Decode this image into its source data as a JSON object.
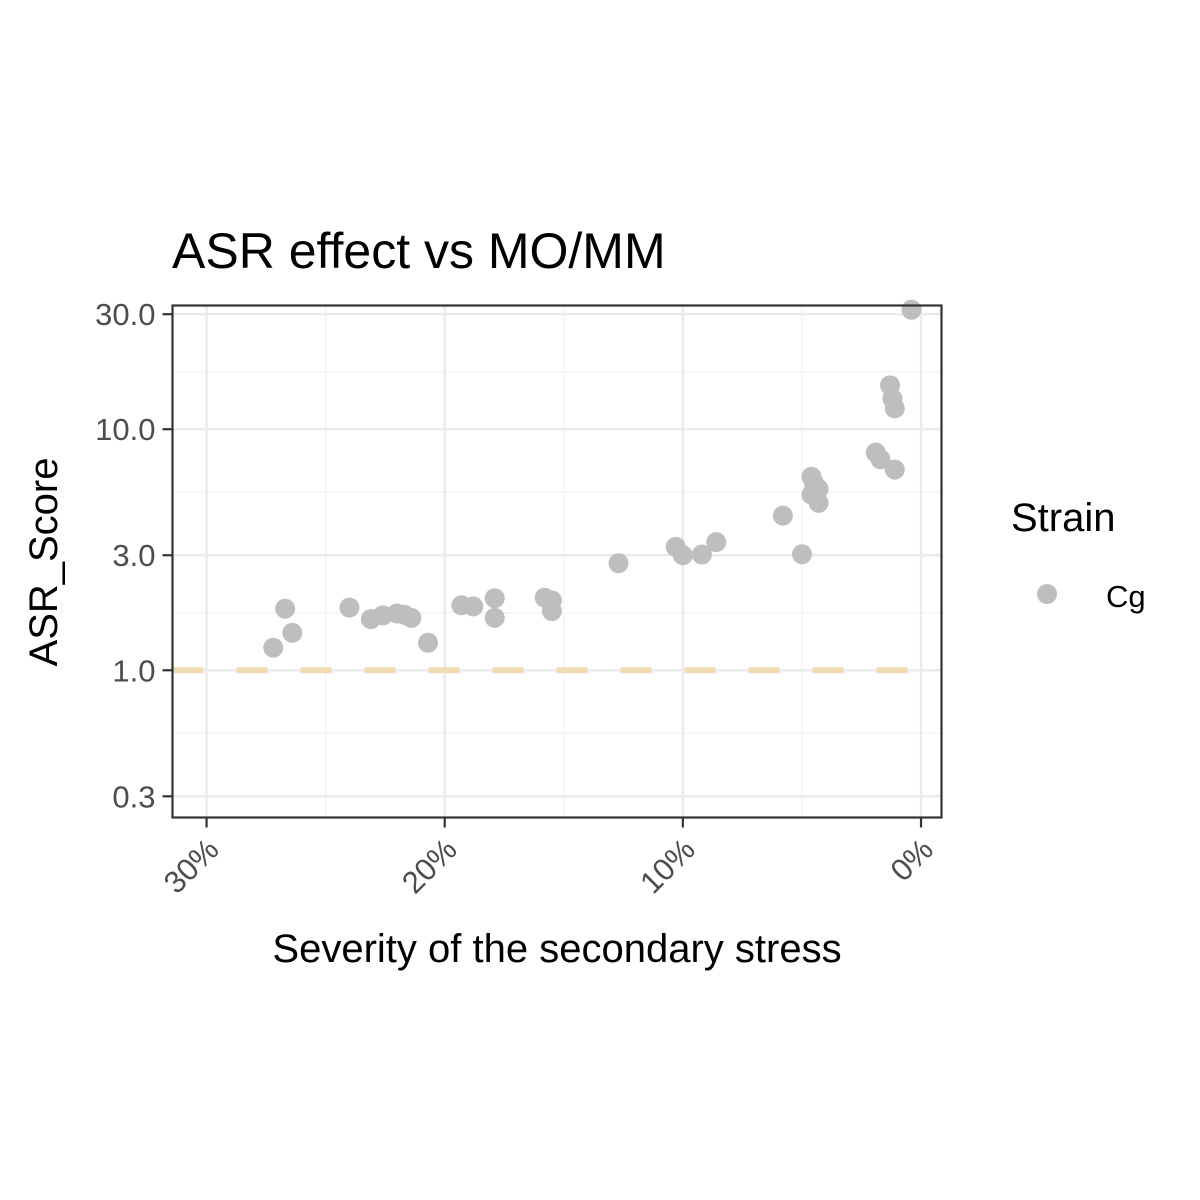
{
  "chart_data": {
    "type": "scatter",
    "title": "ASR effect vs MO/MM",
    "xlabel": "Severity of the secondary stress",
    "ylabel": "ASR_Score",
    "x_reversed": true,
    "x_ticks": [
      {
        "value": 0.3,
        "label": "30%"
      },
      {
        "value": 0.2,
        "label": "20%"
      },
      {
        "value": 0.1,
        "label": "10%"
      },
      {
        "value": 0.0,
        "label": "0%"
      }
    ],
    "y_scale": "log10",
    "y_ticks": [
      {
        "value": 0.3,
        "label": "0.3"
      },
      {
        "value": 1.0,
        "label": "1.0"
      },
      {
        "value": 3.0,
        "label": "3.0"
      },
      {
        "value": 10.0,
        "label": "10.0"
      },
      {
        "value": 30.0,
        "label": "30.0"
      }
    ],
    "xlim": [
      0.3143,
      -0.0086
    ],
    "ylim": [
      0.245,
      32.6
    ],
    "reference_line": {
      "y": 1.0,
      "style": "dashed",
      "color": "#f0dbb4"
    },
    "grid": true,
    "legend": {
      "title": "Strain",
      "position": "right",
      "entries": [
        {
          "label": "Cg",
          "color": "#bebebe"
        }
      ]
    },
    "series": [
      {
        "name": "Cg",
        "color": "#bebebe",
        "points": [
          {
            "x": 0.272,
            "y": 1.24
          },
          {
            "x": 0.267,
            "y": 1.8
          },
          {
            "x": 0.264,
            "y": 1.43
          },
          {
            "x": 0.24,
            "y": 1.82
          },
          {
            "x": 0.231,
            "y": 1.63
          },
          {
            "x": 0.226,
            "y": 1.69
          },
          {
            "x": 0.22,
            "y": 1.72
          },
          {
            "x": 0.217,
            "y": 1.7
          },
          {
            "x": 0.214,
            "y": 1.65
          },
          {
            "x": 0.207,
            "y": 1.3
          },
          {
            "x": 0.193,
            "y": 1.86
          },
          {
            "x": 0.188,
            "y": 1.84
          },
          {
            "x": 0.179,
            "y": 1.99
          },
          {
            "x": 0.179,
            "y": 1.65
          },
          {
            "x": 0.158,
            "y": 2.0
          },
          {
            "x": 0.155,
            "y": 1.95
          },
          {
            "x": 0.155,
            "y": 1.76
          },
          {
            "x": 0.127,
            "y": 2.78
          },
          {
            "x": 0.103,
            "y": 3.25
          },
          {
            "x": 0.1,
            "y": 3.0
          },
          {
            "x": 0.092,
            "y": 3.02
          },
          {
            "x": 0.086,
            "y": 3.4
          },
          {
            "x": 0.058,
            "y": 4.38
          },
          {
            "x": 0.05,
            "y": 3.03
          },
          {
            "x": 0.046,
            "y": 6.35
          },
          {
            "x": 0.046,
            "y": 5.35
          },
          {
            "x": 0.045,
            "y": 6.0
          },
          {
            "x": 0.044,
            "y": 5.7
          },
          {
            "x": 0.043,
            "y": 4.95
          },
          {
            "x": 0.043,
            "y": 5.65
          },
          {
            "x": 0.019,
            "y": 8.0
          },
          {
            "x": 0.017,
            "y": 7.5
          },
          {
            "x": 0.013,
            "y": 15.2
          },
          {
            "x": 0.012,
            "y": 13.4
          },
          {
            "x": 0.011,
            "y": 12.2
          },
          {
            "x": 0.011,
            "y": 6.8
          },
          {
            "x": 0.004,
            "y": 31.3
          }
        ]
      }
    ]
  }
}
